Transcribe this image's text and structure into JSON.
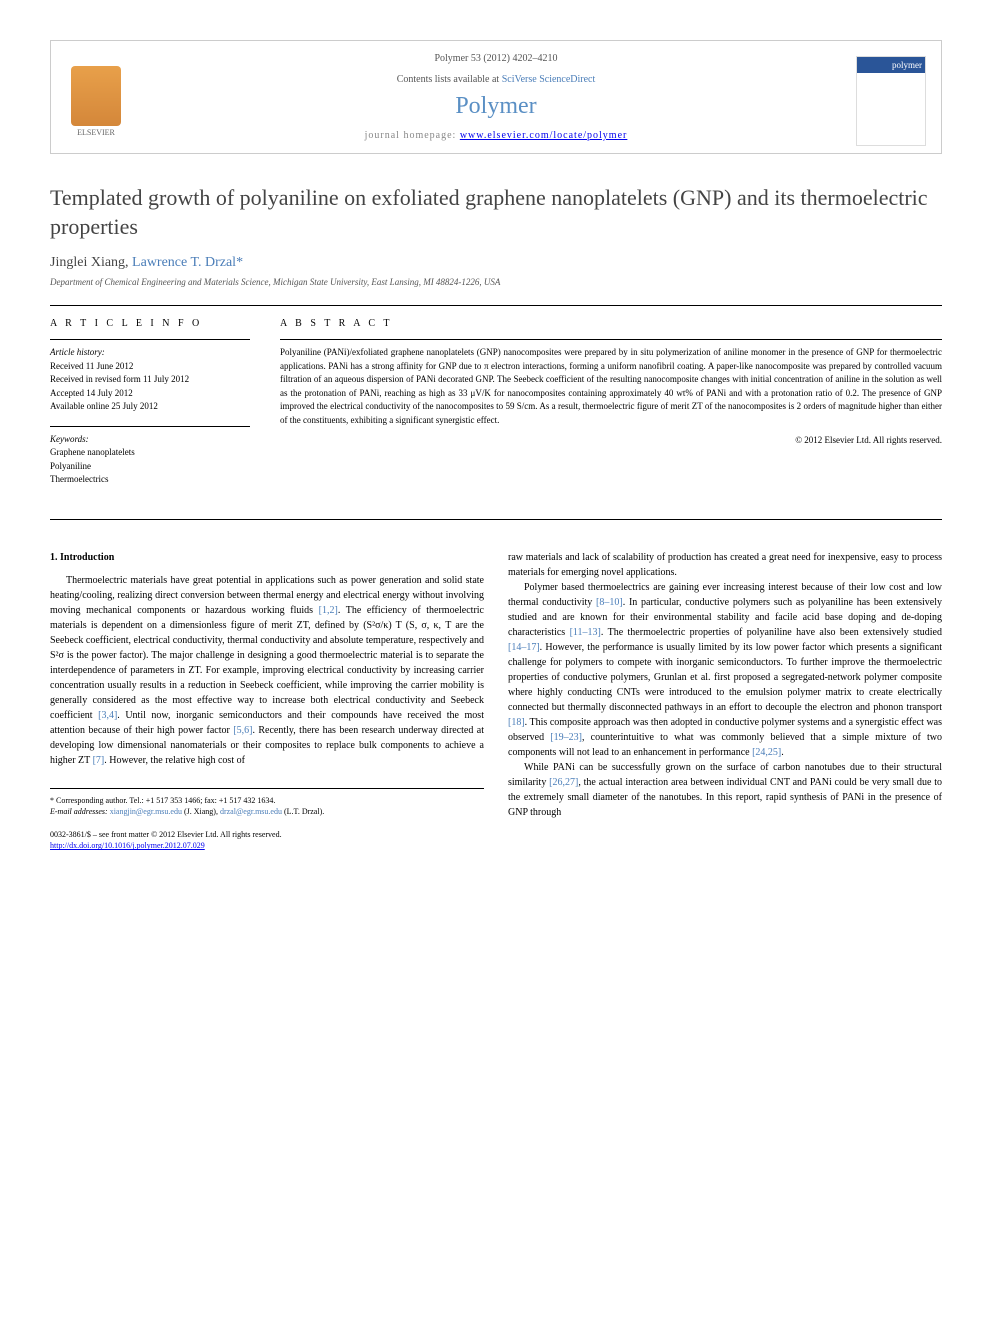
{
  "header": {
    "citation": "Polymer 53 (2012) 4202–4210",
    "contents_prefix": "Contents lists available at ",
    "contents_link": "SciVerse ScienceDirect",
    "journal": "Polymer",
    "homepage_prefix": "journal homepage: ",
    "homepage_url": "www.elsevier.com/locate/polymer",
    "publisher_name": "ELSEVIER",
    "cover_label": "polymer"
  },
  "article": {
    "title": "Templated growth of polyaniline on exfoliated graphene nanoplatelets (GNP) and its thermoelectric properties",
    "authors_html": "Jinglei Xiang, Lawrence T. Drzal",
    "author1": "Jinglei Xiang, ",
    "author2": "Lawrence T. Drzal",
    "corresp_marker": "*",
    "affiliation": "Department of Chemical Engineering and Materials Science, Michigan State University, East Lansing, MI 48824-1226, USA"
  },
  "info": {
    "heading": "A R T I C L E   I N F O",
    "history_label": "Article history:",
    "received": "Received 11 June 2012",
    "revised": "Received in revised form 11 July 2012",
    "accepted": "Accepted 14 July 2012",
    "online": "Available online 25 July 2012",
    "keywords_label": "Keywords:",
    "kw1": "Graphene nanoplatelets",
    "kw2": "Polyaniline",
    "kw3": "Thermoelectrics"
  },
  "abstract": {
    "heading": "A B S T R A C T",
    "text": "Polyaniline (PANi)/exfoliated graphene nanoplatelets (GNP) nanocomposites were prepared by in situ polymerization of aniline monomer in the presence of GNP for thermoelectric applications. PANi has a strong affinity for GNP due to π electron interactions, forming a uniform nanofibril coating. A paper-like nanocomposite was prepared by controlled vacuum filtration of an aqueous dispersion of PANi decorated GNP. The Seebeck coefficient of the resulting nanocomposite changes with initial concentration of aniline in the solution as well as the protonation of PANi, reaching as high as 33 μV/K for nanocomposites containing approximately 40 wt% of PANi and with a protonation ratio of 0.2. The presence of GNP improved the electrical conductivity of the nanocomposites to 59 S/cm. As a result, thermoelectric figure of merit ZT of the nanocomposites is 2 orders of magnitude higher than either of the constituents, exhibiting a significant synergistic effect.",
    "copyright": "© 2012 Elsevier Ltd. All rights reserved."
  },
  "body": {
    "intro_heading": "1. Introduction",
    "col1_p1a": "Thermoelectric materials have great potential in applications such as power generation and solid state heating/cooling, realizing direct conversion between thermal energy and electrical energy without involving moving mechanical components or hazardous working fluids ",
    "ref12": "[1,2]",
    "col1_p1b": ". The efficiency of thermoelectric materials is dependent on a dimensionless figure of merit ZT, defined by (S²σ/κ) T (S, σ, κ, T are the Seebeck coefficient, electrical conductivity, thermal conductivity and absolute temperature, respectively and S²σ is the power factor). The major challenge in designing a good thermoelectric material is to separate the interdependence of parameters in ZT. For example, improving electrical conductivity by increasing carrier concentration usually results in a reduction in Seebeck coefficient, while improving the carrier mobility is generally considered as the most effective way to increase both electrical conductivity and Seebeck coefficient ",
    "ref34": "[3,4]",
    "col1_p1c": ". Until now, inorganic semiconductors and their compounds have received the most attention because of their high power factor ",
    "ref56": "[5,6]",
    "col1_p1d": ". Recently, there has been research underway directed at developing low dimensional nanomaterials or their composites to replace bulk components to achieve a higher ZT ",
    "ref7": "[7]",
    "col1_p1e": ". However, the relative high cost of",
    "col2_p1": "raw materials and lack of scalability of production has created a great need for inexpensive, easy to process materials for emerging novel applications.",
    "col2_p2a": "Polymer based thermoelectrics are gaining ever increasing interest because of their low cost and low thermal conductivity ",
    "ref810": "[8–10]",
    "col2_p2b": ". In particular, conductive polymers such as polyaniline has been extensively studied and are known for their environmental stability and facile acid base doping and de-doping characteristics ",
    "ref1113": "[11–13]",
    "col2_p2c": ". The thermoelectric properties of polyaniline have also been extensively studied ",
    "ref1417": "[14–17]",
    "col2_p2d": ". However, the performance is usually limited by its low power factor which presents a significant challenge for polymers to compete with inorganic semiconductors. To further improve the thermoelectric properties of conductive polymers, Grunlan et al. first proposed a segregated-network polymer composite where highly conducting CNTs were introduced to the emulsion polymer matrix to create electrically connected but thermally disconnected pathways in an effort to decouple the electron and phonon transport ",
    "ref18": "[18]",
    "col2_p2e": ". This composite approach was then adopted in conductive polymer systems and a synergistic effect was observed ",
    "ref1923": "[19–23]",
    "col2_p2f": ", counterintuitive to what was commonly believed that a simple mixture of two components will not lead to an enhancement in performance ",
    "ref2425": "[24,25]",
    "col2_p2g": ".",
    "col2_p3a": "While PANi can be successfully grown on the surface of carbon nanotubes due to their structural similarity ",
    "ref2627": "[26,27]",
    "col2_p3b": ", the actual interaction area between individual CNT and PANi could be very small due to the extremely small diameter of the nanotubes. In this report, rapid synthesis of PANi in the presence of GNP through"
  },
  "footer": {
    "corresp": "* Corresponding author. Tel.: +1 517 353 1466; fax: +1 517 432 1634.",
    "email_label": "E-mail addresses: ",
    "email1": "xiangjin@egr.msu.edu",
    "email1_who": " (J. Xiang), ",
    "email2": "drzal@egr.msu.edu",
    "email2_who": " (L.T. Drzal).",
    "issn": "0032-3861/$ – see front matter © 2012 Elsevier Ltd. All rights reserved.",
    "doi": "http://dx.doi.org/10.1016/j.polymer.2012.07.029"
  },
  "colors": {
    "link": "#4a7db8",
    "journal_title": "#5a8fc4",
    "text": "#000000",
    "muted": "#555555"
  }
}
